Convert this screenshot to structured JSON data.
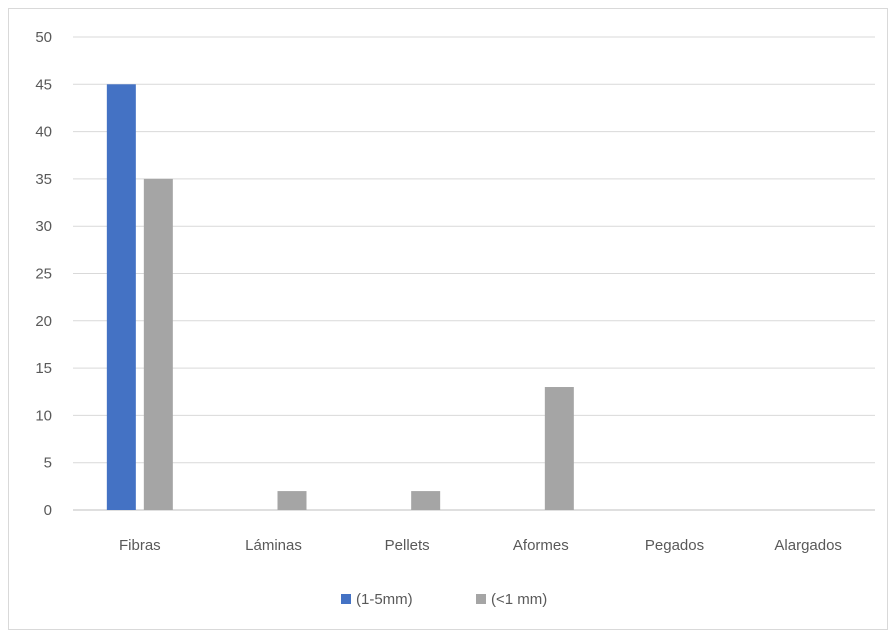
{
  "chart_data": {
    "type": "bar",
    "categories": [
      "Fibras",
      "Láminas",
      "Pellets",
      "Aformes",
      "Pegados",
      "Alargados"
    ],
    "series": [
      {
        "name": "(1-5mm)",
        "values": [
          45,
          0,
          0,
          0,
          0,
          0
        ],
        "color": "#4472c4"
      },
      {
        "name": "(<1 mm)",
        "values": [
          35,
          2,
          2,
          13,
          0,
          0
        ],
        "color": "#a5a5a5"
      }
    ],
    "yticks": [
      0,
      5,
      10,
      15,
      20,
      25,
      30,
      35,
      40,
      45,
      50
    ],
    "ylim": [
      0,
      50
    ],
    "grid": true,
    "legend_position": "bottom",
    "title": "",
    "xlabel": "",
    "ylabel": ""
  }
}
